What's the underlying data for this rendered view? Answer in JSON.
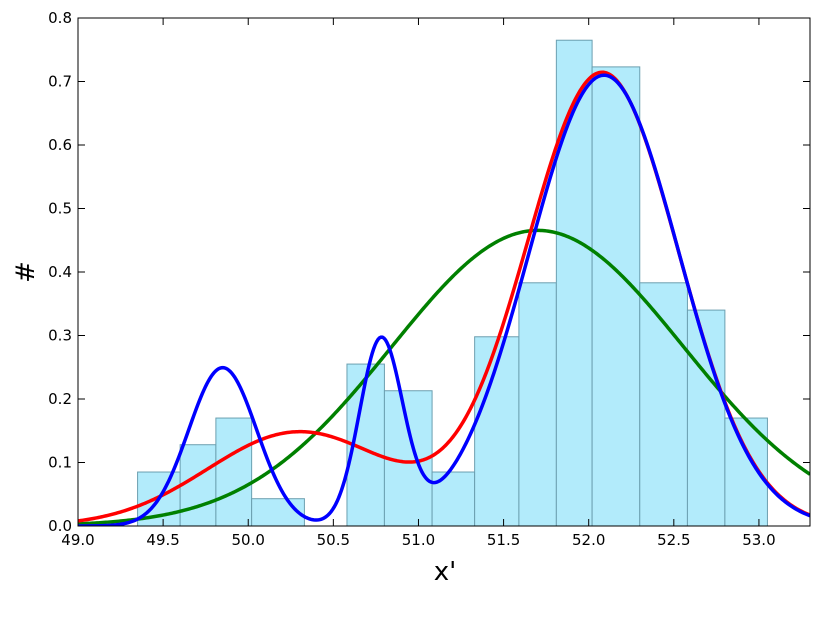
{
  "chart_data": {
    "type": "bar",
    "xlabel": "x'",
    "ylabel": "#",
    "xlim": [
      49.0,
      53.3
    ],
    "ylim": [
      0.0,
      0.8
    ],
    "xticks": [
      "49.0",
      "49.5",
      "50.0",
      "50.5",
      "51.0",
      "51.5",
      "52.0",
      "52.5",
      "53.0"
    ],
    "yticks": [
      "0.0",
      "0.1",
      "0.2",
      "0.3",
      "0.4",
      "0.5",
      "0.6",
      "0.7",
      "0.8"
    ],
    "grid": false,
    "bins": [
      {
        "x0": 49.35,
        "x1": 49.6,
        "value": 0.085
      },
      {
        "x0": 49.6,
        "x1": 49.81,
        "value": 0.128
      },
      {
        "x0": 49.81,
        "x1": 50.02,
        "value": 0.17
      },
      {
        "x0": 50.02,
        "x1": 50.33,
        "value": 0.043
      },
      {
        "x0": 50.58,
        "x1": 50.8,
        "value": 0.255
      },
      {
        "x0": 50.8,
        "x1": 51.08,
        "value": 0.213
      },
      {
        "x0": 51.08,
        "x1": 51.33,
        "value": 0.085
      },
      {
        "x0": 51.33,
        "x1": 51.59,
        "value": 0.298
      },
      {
        "x0": 51.59,
        "x1": 51.81,
        "value": 0.383
      },
      {
        "x0": 51.81,
        "x1": 52.02,
        "value": 0.765
      },
      {
        "x0": 52.02,
        "x1": 52.3,
        "value": 0.723
      },
      {
        "x0": 52.3,
        "x1": 52.58,
        "value": 0.383
      },
      {
        "x0": 52.58,
        "x1": 52.8,
        "value": 0.34
      },
      {
        "x0": 52.8,
        "x1": 53.05,
        "value": 0.17
      }
    ],
    "series": [
      {
        "color": "#008000",
        "components": [
          {
            "weight": 1.0,
            "mu": 51.7,
            "sigma": 0.857
          }
        ]
      },
      {
        "color": "#ff0000",
        "components": [
          {
            "weight": 0.2,
            "mu": 50.3,
            "sigma": 0.538
          },
          {
            "weight": 0.8,
            "mu": 52.08,
            "sigma": 0.447
          }
        ]
      },
      {
        "color": "#0000ff",
        "components": [
          {
            "weight": 0.125,
            "mu": 49.85,
            "sigma": 0.2
          },
          {
            "weight": 0.092,
            "mu": 50.78,
            "sigma": 0.127
          },
          {
            "weight": 0.783,
            "mu": 52.09,
            "sigma": 0.44
          }
        ]
      }
    ],
    "colors": {
      "bar_fill": "#b2ebfb",
      "bar_edge": "#6b9fb0"
    }
  }
}
